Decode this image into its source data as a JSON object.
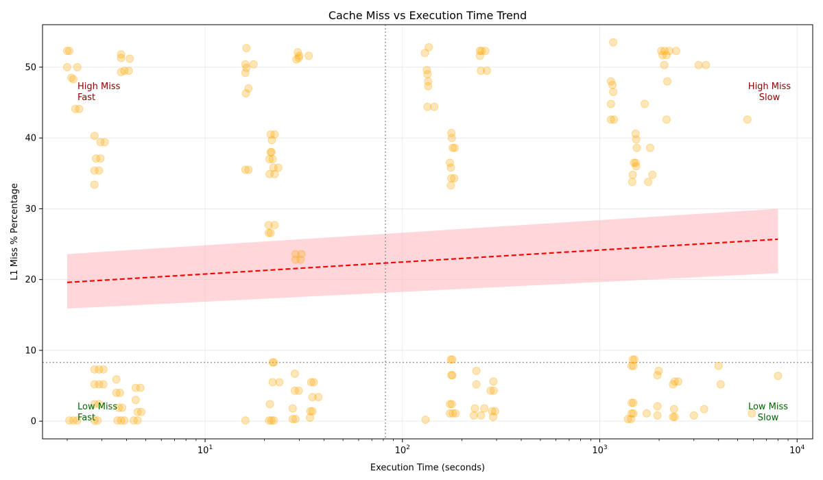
{
  "chart_data": {
    "type": "scatter",
    "title": "Cache Miss vs Execution Time Trend",
    "xlabel": "Execution Time (seconds)",
    "ylabel": "L1 Miss % Percentage",
    "x_scale": "log",
    "xlim": [
      1.5,
      12000
    ],
    "ylim": [
      -2.5,
      56
    ],
    "x_ticks": [
      {
        "value": 10,
        "base": "10",
        "exp": "1"
      },
      {
        "value": 100,
        "base": "10",
        "exp": "2"
      },
      {
        "value": 1000,
        "base": "10",
        "exp": "3"
      },
      {
        "value": 10000,
        "base": "10",
        "exp": "4"
      }
    ],
    "y_ticks": [
      0,
      10,
      20,
      30,
      40,
      50
    ],
    "grid": true,
    "point_color": "#FFA500",
    "trend_color": "#FF0000",
    "band_color": "#FFB6BE",
    "reference_lines": {
      "x": 82,
      "y": 8.3
    },
    "trend": {
      "x": [
        2,
        8000
      ],
      "y": [
        19.6,
        25.7
      ],
      "band_upper": [
        23.6,
        30.0
      ],
      "band_lower": [
        15.9,
        20.9
      ]
    },
    "quadrant_labels": [
      {
        "text": "High Miss\nFast",
        "color": "#8B0000",
        "anchor": "start",
        "corner": "top-left"
      },
      {
        "text": "High Miss\nSlow",
        "color": "#8B0000",
        "anchor": "end",
        "corner": "top-right"
      },
      {
        "text": "Low Miss\nFast",
        "color": "#006400",
        "anchor": "start",
        "corner": "bottom-left"
      },
      {
        "text": "Low Miss\nSlow",
        "color": "#006400",
        "anchor": "end",
        "corner": "bottom-right"
      }
    ],
    "points": [
      {
        "x": 2.0,
        "y": 52.3
      },
      {
        "x": 2.05,
        "y": 52.3
      },
      {
        "x": 2.0,
        "y": 50.0
      },
      {
        "x": 2.25,
        "y": 50.0
      },
      {
        "x": 2.1,
        "y": 48.5
      },
      {
        "x": 2.15,
        "y": 48.3
      },
      {
        "x": 2.2,
        "y": 44.1
      },
      {
        "x": 2.3,
        "y": 44.1
      },
      {
        "x": 2.75,
        "y": 40.3
      },
      {
        "x": 2.95,
        "y": 39.4
      },
      {
        "x": 3.1,
        "y": 39.4
      },
      {
        "x": 2.8,
        "y": 37.1
      },
      {
        "x": 2.95,
        "y": 37.1
      },
      {
        "x": 2.75,
        "y": 35.4
      },
      {
        "x": 2.9,
        "y": 35.4
      },
      {
        "x": 2.75,
        "y": 33.4
      },
      {
        "x": 3.75,
        "y": 51.8
      },
      {
        "x": 3.75,
        "y": 51.3
      },
      {
        "x": 4.15,
        "y": 51.2
      },
      {
        "x": 3.75,
        "y": 49.3
      },
      {
        "x": 3.9,
        "y": 49.5
      },
      {
        "x": 4.1,
        "y": 49.5
      },
      {
        "x": 2.75,
        "y": 7.3
      },
      {
        "x": 2.9,
        "y": 7.3
      },
      {
        "x": 3.05,
        "y": 7.3
      },
      {
        "x": 2.75,
        "y": 5.2
      },
      {
        "x": 2.9,
        "y": 5.2
      },
      {
        "x": 3.05,
        "y": 5.2
      },
      {
        "x": 2.75,
        "y": 2.4
      },
      {
        "x": 2.9,
        "y": 2.4
      },
      {
        "x": 2.05,
        "y": 0.1
      },
      {
        "x": 2.15,
        "y": 0.1
      },
      {
        "x": 2.25,
        "y": 0.1
      },
      {
        "x": 2.75,
        "y": 0.1
      },
      {
        "x": 2.85,
        "y": 0.1
      },
      {
        "x": 3.55,
        "y": 5.9
      },
      {
        "x": 3.55,
        "y": 4.0
      },
      {
        "x": 3.7,
        "y": 4.0
      },
      {
        "x": 3.65,
        "y": 1.9
      },
      {
        "x": 3.8,
        "y": 1.9
      },
      {
        "x": 3.6,
        "y": 0.1
      },
      {
        "x": 3.75,
        "y": 0.1
      },
      {
        "x": 3.9,
        "y": 0.1
      },
      {
        "x": 4.45,
        "y": 4.7
      },
      {
        "x": 4.7,
        "y": 4.7
      },
      {
        "x": 4.45,
        "y": 3.0
      },
      {
        "x": 4.55,
        "y": 1.3
      },
      {
        "x": 4.75,
        "y": 1.3
      },
      {
        "x": 4.35,
        "y": 0.1
      },
      {
        "x": 4.55,
        "y": 0.1
      },
      {
        "x": 16.2,
        "y": 52.7
      },
      {
        "x": 16.0,
        "y": 50.4
      },
      {
        "x": 17.6,
        "y": 50.4
      },
      {
        "x": 16.2,
        "y": 49.9
      },
      {
        "x": 16.0,
        "y": 49.2
      },
      {
        "x": 16.6,
        "y": 47.0
      },
      {
        "x": 16.1,
        "y": 46.3
      },
      {
        "x": 16.0,
        "y": 35.5
      },
      {
        "x": 16.6,
        "y": 35.5
      },
      {
        "x": 21.5,
        "y": 40.5
      },
      {
        "x": 22.5,
        "y": 40.5
      },
      {
        "x": 21.8,
        "y": 39.7
      },
      {
        "x": 21.5,
        "y": 38.0
      },
      {
        "x": 21.7,
        "y": 38.0
      },
      {
        "x": 21.2,
        "y": 37.0
      },
      {
        "x": 22.0,
        "y": 37.0
      },
      {
        "x": 22.2,
        "y": 35.8
      },
      {
        "x": 23.5,
        "y": 35.8
      },
      {
        "x": 21.2,
        "y": 34.9
      },
      {
        "x": 22.5,
        "y": 34.9
      },
      {
        "x": 21.0,
        "y": 27.7
      },
      {
        "x": 22.5,
        "y": 27.7
      },
      {
        "x": 21.0,
        "y": 26.6
      },
      {
        "x": 21.5,
        "y": 26.6
      },
      {
        "x": 29.5,
        "y": 52.1
      },
      {
        "x": 30.0,
        "y": 51.6
      },
      {
        "x": 29.0,
        "y": 51.1
      },
      {
        "x": 29.8,
        "y": 51.3
      },
      {
        "x": 33.5,
        "y": 51.6
      },
      {
        "x": 28.7,
        "y": 23.6
      },
      {
        "x": 30.8,
        "y": 23.6
      },
      {
        "x": 28.7,
        "y": 22.8
      },
      {
        "x": 30.5,
        "y": 22.8
      },
      {
        "x": 22.0,
        "y": 8.3
      },
      {
        "x": 22.3,
        "y": 8.3
      },
      {
        "x": 22.0,
        "y": 5.5
      },
      {
        "x": 23.8,
        "y": 5.5
      },
      {
        "x": 21.3,
        "y": 2.4
      },
      {
        "x": 21.1,
        "y": 0.1
      },
      {
        "x": 21.7,
        "y": 0.1
      },
      {
        "x": 22.3,
        "y": 0.1
      },
      {
        "x": 16.0,
        "y": 0.1
      },
      {
        "x": 28.5,
        "y": 6.7
      },
      {
        "x": 28.5,
        "y": 4.3
      },
      {
        "x": 29.8,
        "y": 4.3
      },
      {
        "x": 27.8,
        "y": 1.8
      },
      {
        "x": 27.8,
        "y": 0.3
      },
      {
        "x": 28.7,
        "y": 0.3
      },
      {
        "x": 34.5,
        "y": 5.5
      },
      {
        "x": 35.5,
        "y": 5.5
      },
      {
        "x": 35.0,
        "y": 3.4
      },
      {
        "x": 37.5,
        "y": 3.4
      },
      {
        "x": 34.2,
        "y": 1.4
      },
      {
        "x": 35.0,
        "y": 1.4
      },
      {
        "x": 34.0,
        "y": 0.5
      },
      {
        "x": 130.0,
        "y": 52.0
      },
      {
        "x": 136.0,
        "y": 52.8
      },
      {
        "x": 133.0,
        "y": 49.6
      },
      {
        "x": 134.0,
        "y": 49.0
      },
      {
        "x": 135.0,
        "y": 48.0
      },
      {
        "x": 135.0,
        "y": 47.3
      },
      {
        "x": 134.0,
        "y": 44.4
      },
      {
        "x": 145.0,
        "y": 44.4
      },
      {
        "x": 177.0,
        "y": 40.7
      },
      {
        "x": 178.0,
        "y": 40.0
      },
      {
        "x": 180.0,
        "y": 38.6
      },
      {
        "x": 184.0,
        "y": 38.6
      },
      {
        "x": 174.0,
        "y": 36.5
      },
      {
        "x": 176.0,
        "y": 35.8
      },
      {
        "x": 177.0,
        "y": 34.3
      },
      {
        "x": 183.0,
        "y": 34.3
      },
      {
        "x": 176.0,
        "y": 33.3
      },
      {
        "x": 176.0,
        "y": 8.7
      },
      {
        "x": 179.0,
        "y": 8.7
      },
      {
        "x": 177.0,
        "y": 6.5
      },
      {
        "x": 179.0,
        "y": 6.5
      },
      {
        "x": 174.0,
        "y": 2.4
      },
      {
        "x": 178.0,
        "y": 2.4
      },
      {
        "x": 174.0,
        "y": 1.1
      },
      {
        "x": 180.0,
        "y": 1.1
      },
      {
        "x": 186.0,
        "y": 1.1
      },
      {
        "x": 131.0,
        "y": 0.2
      },
      {
        "x": 247.0,
        "y": 52.3
      },
      {
        "x": 252.0,
        "y": 52.3
      },
      {
        "x": 263.0,
        "y": 52.3
      },
      {
        "x": 247.0,
        "y": 51.6
      },
      {
        "x": 250.0,
        "y": 49.5
      },
      {
        "x": 268.0,
        "y": 49.5
      },
      {
        "x": 237.0,
        "y": 7.1
      },
      {
        "x": 289.0,
        "y": 5.6
      },
      {
        "x": 237.0,
        "y": 5.2
      },
      {
        "x": 280.0,
        "y": 4.3
      },
      {
        "x": 290.0,
        "y": 4.3
      },
      {
        "x": 233.0,
        "y": 1.8
      },
      {
        "x": 260.0,
        "y": 1.8
      },
      {
        "x": 285.0,
        "y": 1.4
      },
      {
        "x": 295.0,
        "y": 1.4
      },
      {
        "x": 230.0,
        "y": 0.8
      },
      {
        "x": 250.0,
        "y": 0.8
      },
      {
        "x": 288.0,
        "y": 0.6
      },
      {
        "x": 1170.0,
        "y": 53.5
      },
      {
        "x": 1140.0,
        "y": 48.0
      },
      {
        "x": 1160.0,
        "y": 47.5
      },
      {
        "x": 1170.0,
        "y": 46.5
      },
      {
        "x": 1140.0,
        "y": 44.8
      },
      {
        "x": 1140.0,
        "y": 42.6
      },
      {
        "x": 1180.0,
        "y": 42.6
      },
      {
        "x": 1690.0,
        "y": 44.8
      },
      {
        "x": 1520.0,
        "y": 40.6
      },
      {
        "x": 1530.0,
        "y": 39.8
      },
      {
        "x": 1540.0,
        "y": 38.6
      },
      {
        "x": 1800.0,
        "y": 38.6
      },
      {
        "x": 1490.0,
        "y": 36.5
      },
      {
        "x": 1520.0,
        "y": 36.5
      },
      {
        "x": 1530.0,
        "y": 36.0
      },
      {
        "x": 1470.0,
        "y": 34.8
      },
      {
        "x": 1850.0,
        "y": 34.8
      },
      {
        "x": 1460.0,
        "y": 33.8
      },
      {
        "x": 1760.0,
        "y": 33.8
      },
      {
        "x": 2050.0,
        "y": 52.3
      },
      {
        "x": 2130.0,
        "y": 52.3
      },
      {
        "x": 2250.0,
        "y": 52.3
      },
      {
        "x": 2440.0,
        "y": 52.3
      },
      {
        "x": 2080.0,
        "y": 51.7
      },
      {
        "x": 2180.0,
        "y": 51.7
      },
      {
        "x": 2120.0,
        "y": 50.3
      },
      {
        "x": 3170.0,
        "y": 50.3
      },
      {
        "x": 3450.0,
        "y": 50.3
      },
      {
        "x": 2200.0,
        "y": 48.0
      },
      {
        "x": 2180.0,
        "y": 42.6
      },
      {
        "x": 5600.0,
        "y": 42.6
      },
      {
        "x": 1470.0,
        "y": 8.7
      },
      {
        "x": 1500.0,
        "y": 8.7
      },
      {
        "x": 1450.0,
        "y": 7.8
      },
      {
        "x": 1480.0,
        "y": 7.8
      },
      {
        "x": 1990.0,
        "y": 7.1
      },
      {
        "x": 1960.0,
        "y": 6.5
      },
      {
        "x": 2400.0,
        "y": 5.6
      },
      {
        "x": 2500.0,
        "y": 5.6
      },
      {
        "x": 2350.0,
        "y": 5.2
      },
      {
        "x": 4000.0,
        "y": 7.8
      },
      {
        "x": 4100.0,
        "y": 5.2
      },
      {
        "x": 8000.0,
        "y": 6.4
      },
      {
        "x": 1450.0,
        "y": 2.6
      },
      {
        "x": 1480.0,
        "y": 2.6
      },
      {
        "x": 1450.0,
        "y": 1.1
      },
      {
        "x": 1480.0,
        "y": 1.1
      },
      {
        "x": 1960.0,
        "y": 2.1
      },
      {
        "x": 2380.0,
        "y": 1.7
      },
      {
        "x": 3380.0,
        "y": 1.7
      },
      {
        "x": 1730.0,
        "y": 1.1
      },
      {
        "x": 5900.0,
        "y": 1.1
      },
      {
        "x": 1960.0,
        "y": 0.8
      },
      {
        "x": 2350.0,
        "y": 0.6
      },
      {
        "x": 2400.0,
        "y": 0.6
      },
      {
        "x": 3000.0,
        "y": 0.8
      },
      {
        "x": 1390.0,
        "y": 0.3
      },
      {
        "x": 1440.0,
        "y": 0.3
      }
    ]
  }
}
